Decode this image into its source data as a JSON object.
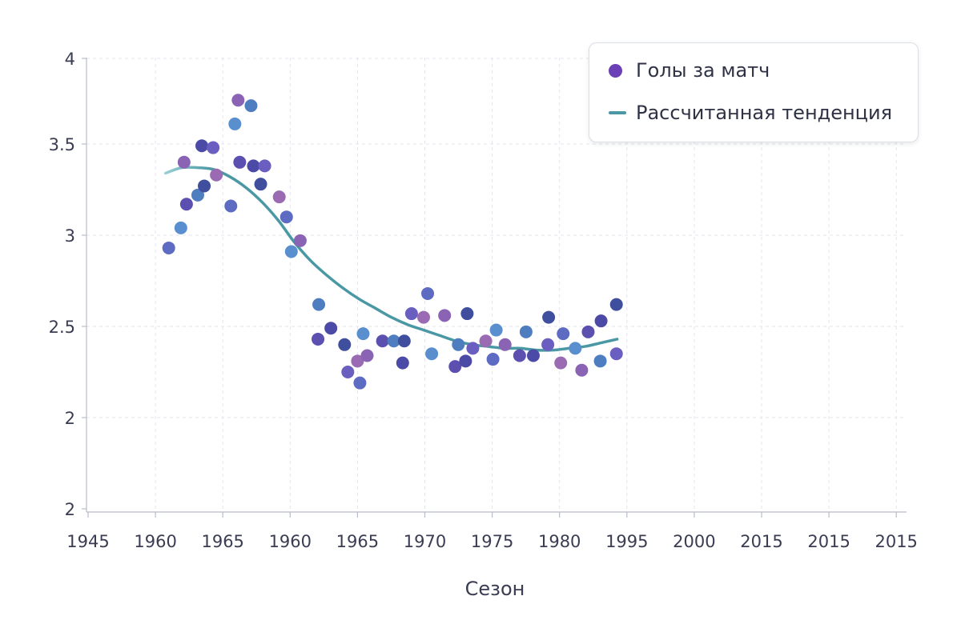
{
  "chart_data": {
    "type": "scatter",
    "title": "",
    "xlabel": "Сезон",
    "ylabel": "",
    "x_tick_labels": [
      "1945",
      "1960",
      "1965",
      "1960",
      "1965",
      "1970",
      "1975",
      "1980",
      "1995",
      "2000",
      "2015",
      "2015",
      "2015"
    ],
    "y_tick_labels": [
      "2",
      "2",
      "2.5",
      "3",
      "3.5",
      "4"
    ],
    "grid": true,
    "legend_position": "top-right",
    "series": [
      {
        "name": "Голы за матч",
        "kind": "points",
        "color": "#6b3fb5",
        "points": [
          [
            1959.4,
            2.93
          ],
          [
            1960.9,
            3.04
          ],
          [
            1961.3,
            3.4
          ],
          [
            1961.6,
            3.17
          ],
          [
            1963.0,
            3.22
          ],
          [
            1963.5,
            3.49
          ],
          [
            1963.8,
            3.27
          ],
          [
            1964.9,
            3.48
          ],
          [
            1965.3,
            3.33
          ],
          [
            1967.1,
            3.16
          ],
          [
            1967.6,
            3.61
          ],
          [
            1968.0,
            3.74
          ],
          [
            1968.2,
            3.4
          ],
          [
            1969.6,
            3.71
          ],
          [
            1969.9,
            3.38
          ],
          [
            1970.8,
            3.28
          ],
          [
            1971.3,
            3.38
          ],
          [
            1973.1,
            3.21
          ],
          [
            1974.0,
            3.1
          ],
          [
            1974.6,
            2.91
          ],
          [
            1975.7,
            2.97
          ],
          [
            1977.9,
            2.43
          ],
          [
            1978.0,
            2.62
          ],
          [
            1979.5,
            2.49
          ],
          [
            1981.2,
            2.4
          ],
          [
            1981.6,
            2.25
          ],
          [
            1982.8,
            2.31
          ],
          [
            1983.1,
            2.19
          ],
          [
            1983.5,
            2.46
          ],
          [
            1984.0,
            2.34
          ],
          [
            1985.9,
            2.42
          ],
          [
            1987.3,
            2.42
          ],
          [
            1988.4,
            2.3
          ],
          [
            1988.6,
            2.42
          ],
          [
            1989.5,
            2.57
          ],
          [
            1991.0,
            2.55
          ],
          [
            1991.5,
            2.68
          ],
          [
            1992.0,
            2.35
          ],
          [
            1993.6,
            2.56
          ],
          [
            1994.9,
            2.28
          ],
          [
            1995.3,
            2.4
          ],
          [
            1996.2,
            2.31
          ],
          [
            1996.4,
            2.57
          ],
          [
            1997.1,
            2.38
          ],
          [
            1998.7,
            2.42
          ],
          [
            1999.6,
            2.32
          ],
          [
            2000.0,
            2.48
          ],
          [
            2001.1,
            2.4
          ],
          [
            2002.9,
            2.34
          ],
          [
            2003.7,
            2.47
          ],
          [
            2004.6,
            2.34
          ],
          [
            2006.5,
            2.55
          ],
          [
            2006.4,
            2.4
          ],
          [
            2008.0,
            2.3
          ],
          [
            2008.3,
            2.46
          ],
          [
            2009.8,
            2.38
          ],
          [
            2010.6,
            2.26
          ],
          [
            2011.4,
            2.47
          ],
          [
            2012.9,
            2.31
          ],
          [
            2013.0,
            2.53
          ],
          [
            2014.9,
            2.62
          ],
          [
            2014.9,
            2.35
          ]
        ]
      },
      {
        "name": "Рассчитанная тенденция",
        "kind": "line",
        "color": "#4a98a4",
        "points": [
          [
            1959.0,
            3.34
          ],
          [
            1961.0,
            3.37
          ],
          [
            1963.0,
            3.37
          ],
          [
            1965.0,
            3.36
          ],
          [
            1967.0,
            3.32
          ],
          [
            1969.0,
            3.26
          ],
          [
            1971.0,
            3.18
          ],
          [
            1973.0,
            3.08
          ],
          [
            1975.0,
            2.96
          ],
          [
            1977.0,
            2.86
          ],
          [
            1979.0,
            2.78
          ],
          [
            1981.0,
            2.71
          ],
          [
            1983.0,
            2.65
          ],
          [
            1985.0,
            2.6
          ],
          [
            1987.0,
            2.55
          ],
          [
            1989.0,
            2.51
          ],
          [
            1991.0,
            2.48
          ],
          [
            1993.0,
            2.45
          ],
          [
            1995.0,
            2.42
          ],
          [
            1997.0,
            2.4
          ],
          [
            1999.0,
            2.39
          ],
          [
            2001.0,
            2.38
          ],
          [
            2003.0,
            2.38
          ],
          [
            2005.0,
            2.37
          ],
          [
            2007.0,
            2.37
          ],
          [
            2009.0,
            2.38
          ],
          [
            2011.0,
            2.39
          ],
          [
            2013.0,
            2.41
          ],
          [
            2015.0,
            2.43
          ]
        ]
      }
    ]
  }
}
